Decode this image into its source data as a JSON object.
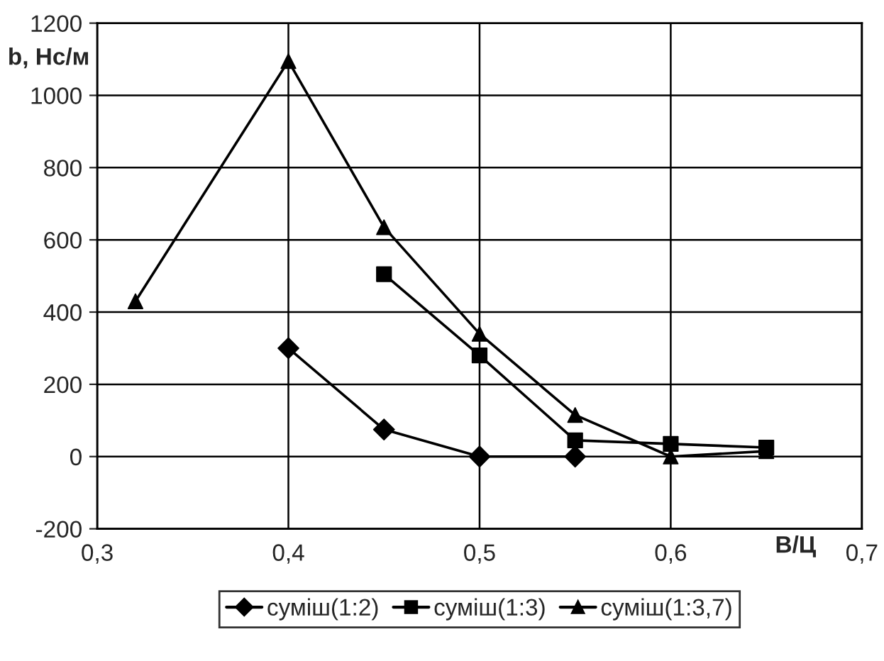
{
  "chart_data": {
    "type": "line",
    "xlabel": "В/Ц",
    "ylabel": "b, Нс/м",
    "xlim": [
      0.3,
      0.7
    ],
    "xticks": [
      {
        "value": 0.3,
        "label": "0,3"
      },
      {
        "value": 0.4,
        "label": "0,4"
      },
      {
        "value": 0.5,
        "label": "0,5"
      },
      {
        "value": 0.6,
        "label": "0,6"
      },
      {
        "value": 0.7,
        "label": "0,7"
      }
    ],
    "ylim": [
      -200,
      1200
    ],
    "yticks": [
      -200,
      0,
      200,
      400,
      600,
      800,
      1000,
      1200
    ],
    "grid": true,
    "legend": "bottom",
    "line_style": "solid",
    "series": [
      {
        "name": "суміш(1:2)",
        "color": "#000000",
        "marker": "diamond",
        "x": [
          0.4,
          0.45,
          0.5,
          0.55
        ],
        "values": [
          300,
          75,
          0,
          0
        ]
      },
      {
        "name": "суміш(1:3)",
        "color": "#000000",
        "marker": "square",
        "x": [
          0.45,
          0.5,
          0.55,
          0.6,
          0.65
        ],
        "values": [
          505,
          280,
          45,
          35,
          25
        ]
      },
      {
        "name": "суміш(1:3,7)",
        "color": "#000000",
        "marker": "triangle",
        "x": [
          0.32,
          0.4,
          0.45,
          0.5,
          0.55,
          0.6,
          0.65
        ],
        "values": [
          430,
          1095,
          635,
          340,
          115,
          0,
          15
        ]
      }
    ]
  }
}
